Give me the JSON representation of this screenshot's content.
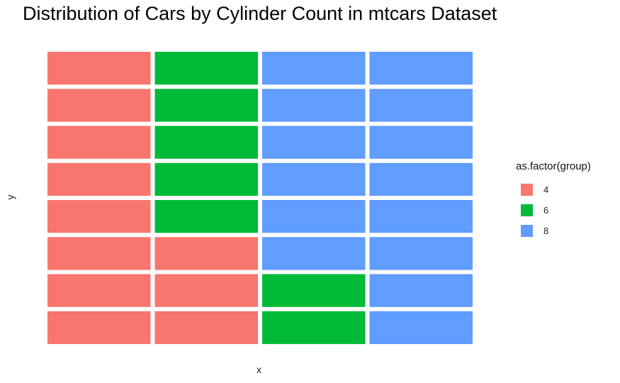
{
  "chart_data": {
    "type": "heatmap",
    "subtype": "waffle",
    "title": "Distribution of Cars by Cylinder Count in mtcars Dataset",
    "xlabel": "x",
    "ylabel": "y",
    "legend_title": "as.factor(group)",
    "legend_position": "right",
    "grid": false,
    "columns": 4,
    "rows": 8,
    "groups": [
      {
        "name": "4",
        "count": 11,
        "color": "#F8766D"
      },
      {
        "name": "6",
        "count": 7,
        "color": "#00BA38"
      },
      {
        "name": "8",
        "count": 14,
        "color": "#619CFF"
      }
    ],
    "cells_by_column_bottom_to_top": [
      [
        "4",
        "4",
        "4",
        "4",
        "4",
        "4",
        "4",
        "4"
      ],
      [
        "4",
        "4",
        "4",
        "6",
        "6",
        "6",
        "6",
        "6"
      ],
      [
        "6",
        "6",
        "8",
        "8",
        "8",
        "8",
        "8",
        "8"
      ],
      [
        "8",
        "8",
        "8",
        "8",
        "8",
        "8",
        "8",
        "8"
      ]
    ]
  }
}
